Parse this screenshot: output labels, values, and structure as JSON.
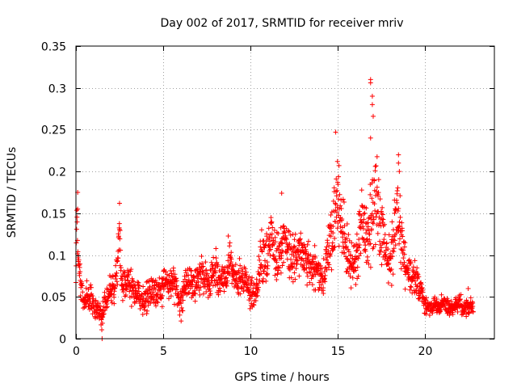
{
  "chart_data": {
    "type": "scatter",
    "title": "Day 002 of 2017, SRMTID for receiver mriv",
    "xlabel": "GPS time / hours",
    "ylabel": "SRMTID / TECUs",
    "xlim": [
      0,
      24
    ],
    "ylim": [
      0,
      0.35
    ],
    "x_ticks": [
      0,
      5,
      10,
      15,
      20
    ],
    "x_tick_labels": [
      "0",
      "5",
      "10",
      "15",
      "20"
    ],
    "y_ticks": [
      0,
      0.05,
      0.1,
      0.15,
      0.2,
      0.25,
      0.3,
      0.35
    ],
    "y_tick_labels": [
      "0",
      "0.05",
      "0.1",
      "0.15",
      "0.2",
      "0.25",
      "0.3",
      "0.35"
    ],
    "grid": true,
    "marker": "+",
    "marker_color": "#ff0000",
    "series": [
      {
        "name": "SRMTID",
        "x": [
          0.0,
          0.05,
          0.1,
          0.15,
          0.2,
          0.3,
          0.4,
          0.5,
          0.6,
          0.7,
          0.8,
          1.0,
          1.2,
          1.4,
          1.5,
          1.6,
          1.8,
          2.0,
          2.2,
          2.4,
          2.5,
          2.6,
          2.8,
          3.0,
          3.2,
          3.4,
          3.6,
          3.8,
          4.0,
          4.2,
          4.4,
          4.6,
          4.8,
          5.0,
          5.2,
          5.4,
          5.6,
          5.8,
          6.0,
          6.2,
          6.4,
          6.6,
          6.8,
          7.0,
          7.2,
          7.4,
          7.6,
          7.8,
          8.0,
          8.2,
          8.4,
          8.6,
          8.8,
          9.0,
          9.2,
          9.4,
          9.6,
          9.8,
          10.0,
          10.2,
          10.4,
          10.6,
          10.8,
          11.0,
          11.2,
          11.4,
          11.6,
          11.8,
          12.0,
          12.2,
          12.4,
          12.6,
          12.8,
          13.0,
          13.2,
          13.4,
          13.6,
          13.8,
          14.0,
          14.2,
          14.4,
          14.6,
          14.8,
          15.0,
          15.2,
          15.4,
          15.6,
          15.8,
          16.0,
          16.2,
          16.4,
          16.6,
          16.8,
          17.0,
          17.2,
          17.4,
          17.6,
          17.8,
          18.0,
          18.2,
          18.4,
          18.6,
          18.8,
          19.0,
          19.2,
          19.4,
          19.6,
          19.8,
          20.0,
          20.2,
          20.4,
          20.6,
          20.8,
          21.0,
          21.2,
          21.4,
          21.6,
          21.8,
          22.0,
          22.2,
          22.4,
          22.6,
          22.8
        ],
        "y_center": [
          0.07,
          0.16,
          0.11,
          0.1,
          0.08,
          0.06,
          0.05,
          0.04,
          0.05,
          0.045,
          0.05,
          0.04,
          0.035,
          0.03,
          0.02,
          0.04,
          0.05,
          0.06,
          0.055,
          0.09,
          0.14,
          0.06,
          0.065,
          0.07,
          0.06,
          0.05,
          0.055,
          0.045,
          0.05,
          0.055,
          0.06,
          0.05,
          0.055,
          0.06,
          0.07,
          0.065,
          0.07,
          0.06,
          0.04,
          0.06,
          0.065,
          0.07,
          0.06,
          0.075,
          0.08,
          0.07,
          0.065,
          0.08,
          0.09,
          0.07,
          0.065,
          0.07,
          0.1,
          0.08,
          0.07,
          0.075,
          0.07,
          0.065,
          0.055,
          0.05,
          0.06,
          0.1,
          0.09,
          0.1,
          0.13,
          0.09,
          0.1,
          0.11,
          0.12,
          0.1,
          0.095,
          0.1,
          0.11,
          0.1,
          0.095,
          0.09,
          0.085,
          0.08,
          0.07,
          0.075,
          0.1,
          0.12,
          0.14,
          0.16,
          0.15,
          0.12,
          0.1,
          0.09,
          0.085,
          0.12,
          0.14,
          0.13,
          0.11,
          0.16,
          0.18,
          0.14,
          0.12,
          0.1,
          0.09,
          0.12,
          0.15,
          0.13,
          0.1,
          0.085,
          0.08,
          0.07,
          0.065,
          0.06,
          0.04,
          0.04,
          0.035,
          0.04,
          0.035,
          0.045,
          0.04,
          0.035,
          0.035,
          0.04,
          0.045,
          0.035,
          0.035,
          0.04,
          0.035
        ],
        "y_spread": [
          0.01,
          0.02,
          0.02,
          0.02,
          0.02,
          0.02,
          0.02,
          0.015,
          0.015,
          0.015,
          0.015,
          0.015,
          0.015,
          0.015,
          0.015,
          0.015,
          0.015,
          0.02,
          0.02,
          0.03,
          0.025,
          0.02,
          0.02,
          0.02,
          0.02,
          0.02,
          0.02,
          0.02,
          0.02,
          0.02,
          0.02,
          0.02,
          0.02,
          0.02,
          0.02,
          0.02,
          0.02,
          0.02,
          0.02,
          0.02,
          0.02,
          0.02,
          0.02,
          0.02,
          0.02,
          0.02,
          0.02,
          0.025,
          0.03,
          0.02,
          0.02,
          0.02,
          0.03,
          0.02,
          0.02,
          0.02,
          0.02,
          0.02,
          0.02,
          0.02,
          0.02,
          0.03,
          0.03,
          0.03,
          0.03,
          0.03,
          0.03,
          0.03,
          0.03,
          0.03,
          0.03,
          0.03,
          0.03,
          0.03,
          0.025,
          0.025,
          0.025,
          0.025,
          0.02,
          0.025,
          0.03,
          0.04,
          0.05,
          0.05,
          0.05,
          0.04,
          0.03,
          0.03,
          0.03,
          0.04,
          0.04,
          0.04,
          0.04,
          0.05,
          0.06,
          0.05,
          0.04,
          0.03,
          0.03,
          0.04,
          0.04,
          0.04,
          0.03,
          0.025,
          0.025,
          0.02,
          0.02,
          0.02,
          0.01,
          0.01,
          0.01,
          0.01,
          0.01,
          0.01,
          0.01,
          0.01,
          0.01,
          0.01,
          0.01,
          0.01,
          0.01,
          0.01,
          0.01
        ]
      }
    ],
    "notable_points": [
      {
        "x": 0.1,
        "y": 0.175
      },
      {
        "x": 0.1,
        "y": 0.155
      },
      {
        "x": 1.5,
        "y": 0.0
      },
      {
        "x": 2.5,
        "y": 0.162
      },
      {
        "x": 11.8,
        "y": 0.174
      },
      {
        "x": 14.9,
        "y": 0.247
      },
      {
        "x": 15.0,
        "y": 0.212
      },
      {
        "x": 16.9,
        "y": 0.31
      },
      {
        "x": 16.9,
        "y": 0.306
      },
      {
        "x": 17.0,
        "y": 0.29
      },
      {
        "x": 17.0,
        "y": 0.28
      },
      {
        "x": 17.05,
        "y": 0.266
      },
      {
        "x": 16.9,
        "y": 0.24
      },
      {
        "x": 18.5,
        "y": 0.22
      },
      {
        "x": 18.5,
        "y": 0.21
      },
      {
        "x": 18.55,
        "y": 0.2
      },
      {
        "x": 22.5,
        "y": 0.06
      }
    ]
  }
}
